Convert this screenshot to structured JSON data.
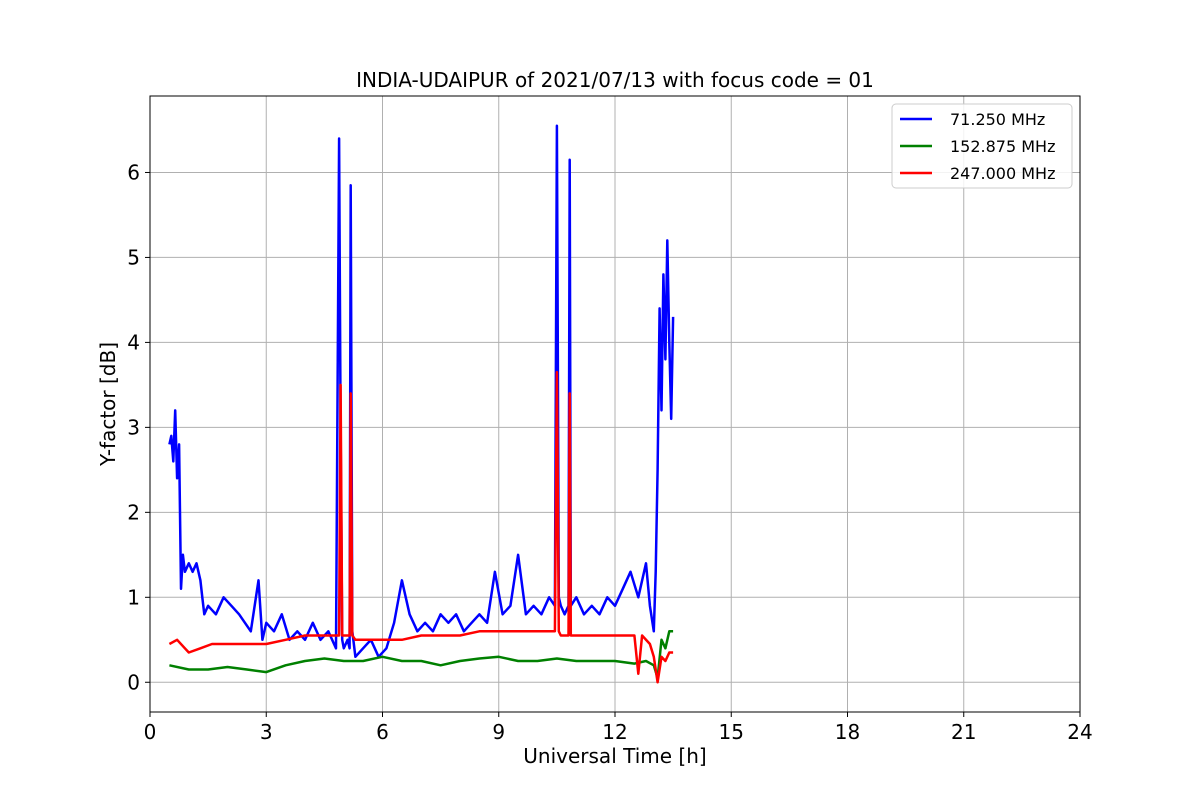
{
  "chart_data": {
    "type": "line",
    "title": "INDIA-UDAIPUR of 2021/07/13 with focus code = 01",
    "xlabel": "Universal Time [h]",
    "ylabel": "Y-factor [dB]",
    "xlim": [
      0,
      24
    ],
    "ylim": [
      -0.35,
      6.9
    ],
    "xticks": [
      0,
      3,
      6,
      9,
      12,
      15,
      18,
      21,
      24
    ],
    "yticks": [
      0,
      1,
      2,
      3,
      4,
      5,
      6
    ],
    "grid": true,
    "legend_position": "top-right",
    "series": [
      {
        "name": " 71.250 MHz",
        "color": "#0000ff",
        "x": [
          0.5,
          0.55,
          0.6,
          0.65,
          0.7,
          0.75,
          0.8,
          0.85,
          0.9,
          1.0,
          1.1,
          1.2,
          1.3,
          1.35,
          1.4,
          1.5,
          1.7,
          1.9,
          2.1,
          2.3,
          2.6,
          2.8,
          2.9,
          3.0,
          3.2,
          3.4,
          3.6,
          3.8,
          4.0,
          4.2,
          4.4,
          4.6,
          4.8,
          4.88,
          4.92,
          4.96,
          5.0,
          5.1,
          5.15,
          5.18,
          5.22,
          5.3,
          5.5,
          5.7,
          5.9,
          6.1,
          6.3,
          6.5,
          6.7,
          6.9,
          7.1,
          7.3,
          7.5,
          7.7,
          7.9,
          8.1,
          8.3,
          8.5,
          8.7,
          8.9,
          9.1,
          9.3,
          9.5,
          9.7,
          9.9,
          10.1,
          10.3,
          10.45,
          10.5,
          10.55,
          10.6,
          10.7,
          10.8,
          10.83,
          10.86,
          11.0,
          11.2,
          11.4,
          11.6,
          11.8,
          12.0,
          12.2,
          12.4,
          12.6,
          12.8,
          12.9,
          13.0,
          13.05,
          13.1,
          13.15,
          13.2,
          13.25,
          13.3,
          13.35,
          13.4,
          13.45,
          13.5
        ],
        "values": [
          2.8,
          2.9,
          2.6,
          3.2,
          2.4,
          2.8,
          1.1,
          1.5,
          1.3,
          1.4,
          1.3,
          1.4,
          1.2,
          1.0,
          0.8,
          0.9,
          0.8,
          1.0,
          0.9,
          0.8,
          0.6,
          1.2,
          0.5,
          0.7,
          0.6,
          0.8,
          0.5,
          0.6,
          0.5,
          0.7,
          0.5,
          0.6,
          0.4,
          6.4,
          3.0,
          0.5,
          0.4,
          0.5,
          0.4,
          5.85,
          0.6,
          0.3,
          0.4,
          0.5,
          0.3,
          0.4,
          0.7,
          1.2,
          0.8,
          0.6,
          0.7,
          0.6,
          0.8,
          0.7,
          0.8,
          0.6,
          0.7,
          0.8,
          0.7,
          1.3,
          0.8,
          0.9,
          1.5,
          0.8,
          0.9,
          0.8,
          1.0,
          0.9,
          6.55,
          1.0,
          0.9,
          0.8,
          0.9,
          6.15,
          0.9,
          1.0,
          0.8,
          0.9,
          0.8,
          1.0,
          0.9,
          1.1,
          1.3,
          1.0,
          1.4,
          0.9,
          0.6,
          1.3,
          2.5,
          4.4,
          3.2,
          4.8,
          3.8,
          5.2,
          4.0,
          3.1,
          4.3
        ]
      },
      {
        "name": "152.875 MHz",
        "color": "#008000",
        "x": [
          0.5,
          1.0,
          1.5,
          2.0,
          2.5,
          3.0,
          3.5,
          4.0,
          4.5,
          5.0,
          5.5,
          6.0,
          6.5,
          7.0,
          7.5,
          8.0,
          8.5,
          9.0,
          9.5,
          10.0,
          10.5,
          11.0,
          11.5,
          12.0,
          12.5,
          12.8,
          13.0,
          13.1,
          13.2,
          13.3,
          13.4,
          13.5
        ],
        "values": [
          0.2,
          0.15,
          0.15,
          0.18,
          0.15,
          0.12,
          0.2,
          0.25,
          0.28,
          0.25,
          0.25,
          0.3,
          0.25,
          0.25,
          0.2,
          0.25,
          0.28,
          0.3,
          0.25,
          0.25,
          0.28,
          0.25,
          0.25,
          0.25,
          0.22,
          0.25,
          0.2,
          0.05,
          0.5,
          0.4,
          0.6,
          0.6
        ]
      },
      {
        "name": "247.000 MHz",
        "color": "#ff0000",
        "x": [
          0.5,
          0.7,
          0.9,
          1.0,
          1.3,
          1.6,
          2.0,
          2.5,
          3.0,
          3.5,
          4.0,
          4.5,
          4.88,
          4.92,
          4.96,
          5.0,
          5.1,
          5.15,
          5.18,
          5.22,
          5.3,
          6.0,
          6.5,
          7.0,
          7.5,
          8.0,
          8.5,
          9.0,
          9.5,
          10.0,
          10.45,
          10.5,
          10.55,
          10.6,
          10.7,
          10.8,
          10.83,
          10.86,
          11.0,
          11.5,
          12.0,
          12.5,
          12.6,
          12.7,
          12.9,
          13.0,
          13.1,
          13.2,
          13.3,
          13.4,
          13.5
        ],
        "values": [
          0.45,
          0.5,
          0.4,
          0.35,
          0.4,
          0.45,
          0.45,
          0.45,
          0.45,
          0.5,
          0.55,
          0.55,
          0.55,
          3.5,
          0.55,
          0.55,
          0.55,
          0.55,
          3.4,
          0.55,
          0.5,
          0.5,
          0.5,
          0.55,
          0.55,
          0.55,
          0.6,
          0.6,
          0.6,
          0.6,
          0.6,
          3.65,
          0.6,
          0.55,
          0.55,
          0.55,
          3.4,
          0.55,
          0.55,
          0.55,
          0.55,
          0.55,
          0.1,
          0.55,
          0.45,
          0.3,
          0.0,
          0.3,
          0.25,
          0.35,
          0.35
        ]
      }
    ]
  }
}
